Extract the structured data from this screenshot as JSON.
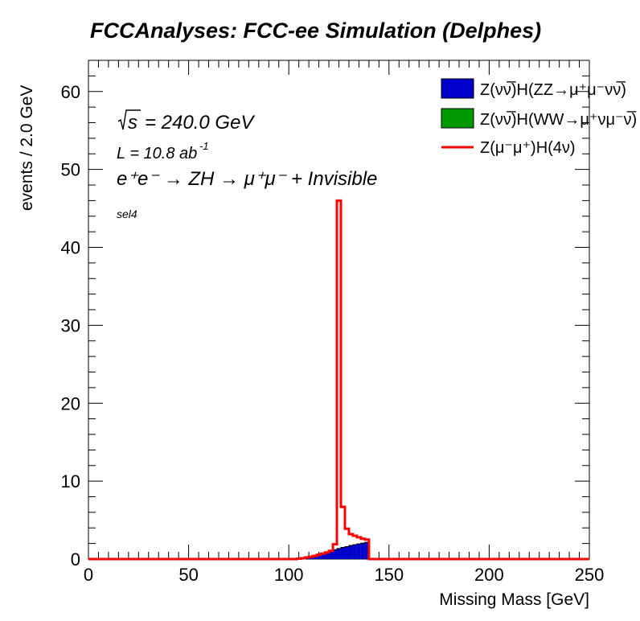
{
  "chart_data": {
    "type": "histogram",
    "title": "FCCAnalyses: FCC-ee Simulation (Delphes)",
    "xlabel": "Missing Mass [GeV]",
    "ylabel": "events / 2.0 GeV",
    "xlim": [
      0,
      250
    ],
    "ylim": [
      0,
      64
    ],
    "bin_width": 2.0,
    "x_ticks": [
      0,
      50,
      100,
      150,
      200,
      250
    ],
    "y_ticks": [
      0,
      10,
      20,
      30,
      40,
      50,
      60
    ],
    "annotations": {
      "sqrt_s": "= 240.0 GeV",
      "sqrt_s_symbol": "s",
      "lumi_prefix": "L = 10.8 ab",
      "lumi_exp": "-1",
      "process": "e⁺e⁻ → ZH → μ⁺μ⁻ + Invisible",
      "selection": "sel4"
    },
    "legend_position": "top-right",
    "series": [
      {
        "name": "Z(νν̅)H(ZZ→μ⁺μ⁻νν̅)",
        "kind": "stacked-fill",
        "color": "#0000cc",
        "bins": [
          [
            104,
            0.05
          ],
          [
            106,
            0.1
          ],
          [
            108,
            0.2
          ],
          [
            110,
            0.28
          ],
          [
            112,
            0.4
          ],
          [
            114,
            0.55
          ],
          [
            116,
            0.7
          ],
          [
            118,
            0.85
          ],
          [
            120,
            1.0
          ],
          [
            122,
            1.2
          ],
          [
            124,
            1.35
          ],
          [
            126,
            1.5
          ],
          [
            128,
            1.6
          ],
          [
            130,
            1.75
          ],
          [
            132,
            1.85
          ],
          [
            134,
            1.95
          ],
          [
            136,
            2.05
          ],
          [
            138,
            2.15
          ]
        ]
      },
      {
        "name": "Z(νν̅)H(WW→μ⁺νμ⁻ν̅)",
        "kind": "stacked-fill",
        "color": "#009900",
        "bins": []
      },
      {
        "name": "Z(μ⁻μ⁺)H(4ν)",
        "kind": "line",
        "color": "#ff0000",
        "bins": [
          [
            104,
            0.05
          ],
          [
            106,
            0.1
          ],
          [
            108,
            0.2
          ],
          [
            110,
            0.3
          ],
          [
            112,
            0.4
          ],
          [
            114,
            0.55
          ],
          [
            116,
            0.7
          ],
          [
            118,
            0.85
          ],
          [
            120,
            1.05
          ],
          [
            122,
            1.9
          ],
          [
            124,
            46.0
          ],
          [
            126,
            6.7
          ],
          [
            128,
            3.9
          ],
          [
            130,
            3.2
          ],
          [
            132,
            3.0
          ],
          [
            134,
            2.8
          ],
          [
            136,
            2.6
          ],
          [
            138,
            2.5
          ]
        ]
      }
    ]
  },
  "colors": {
    "frame": "#000000",
    "background": "#ffffff"
  }
}
